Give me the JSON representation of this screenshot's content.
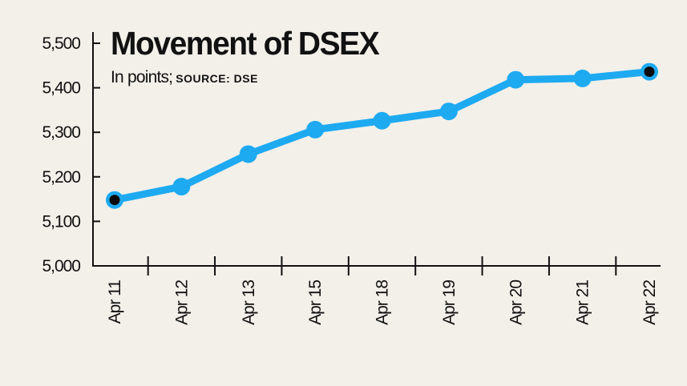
{
  "chart_data": {
    "type": "line",
    "title": "Movement of DSEX",
    "subtitle": "In points;",
    "source": "SOURCE: DSE",
    "categories": [
      "Apr 11",
      "Apr 12",
      "Apr 13",
      "Apr 15",
      "Apr 18",
      "Apr 19",
      "Apr 20",
      "Apr 21",
      "Apr 22"
    ],
    "values": [
      5148,
      5178,
      5251,
      5306,
      5326,
      5347,
      5418,
      5421,
      5436
    ],
    "ylim": [
      5000,
      5500
    ],
    "yticks": [
      "5,000",
      "5,100",
      "5,200",
      "5,300",
      "5,400",
      "5,500"
    ],
    "yticks_values": [
      5000,
      5100,
      5200,
      5300,
      5400,
      5500
    ],
    "highlighted_points": [
      0,
      8
    ],
    "grid": false,
    "colors": {
      "line": "#1eaaf1",
      "highlight": "#0a0a0a",
      "axis": "#111111",
      "background": "#f3f0ea"
    }
  }
}
